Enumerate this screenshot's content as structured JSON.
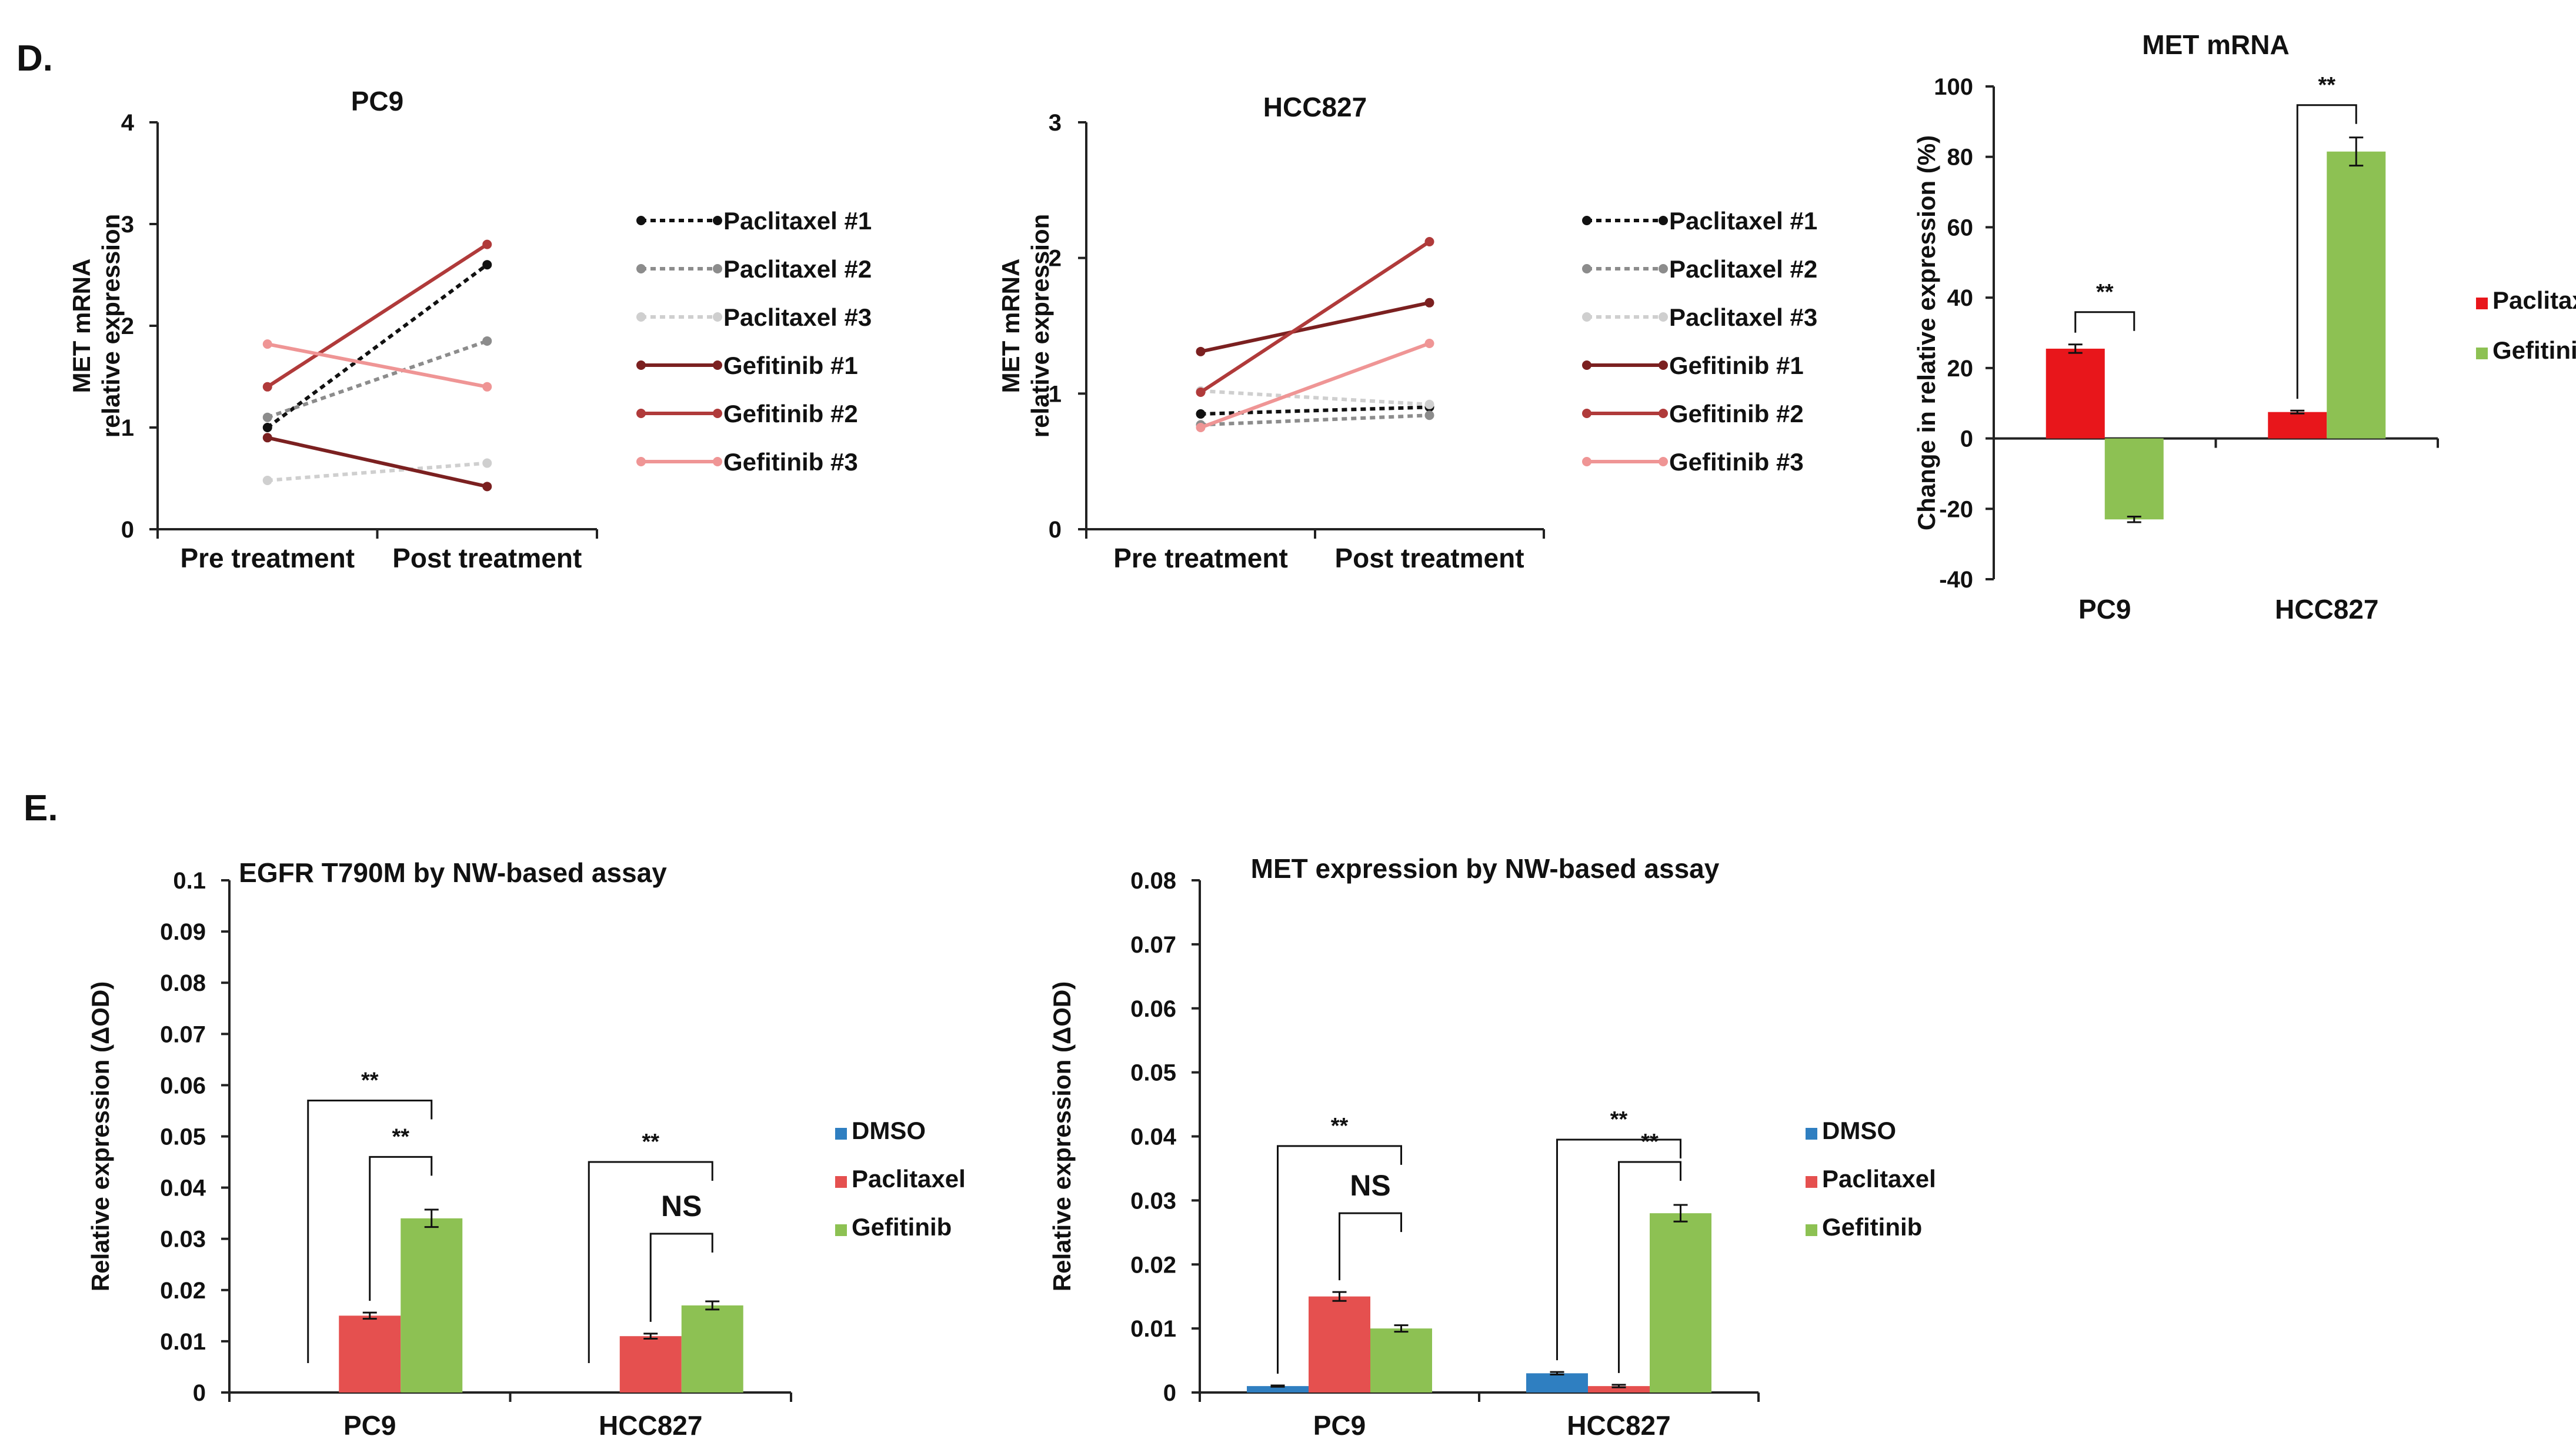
{
  "panels": {
    "D": "D.",
    "E": "E."
  },
  "colors": {
    "paclitaxel_1": "#111111",
    "paclitaxel_2": "#8c8c8c",
    "paclitaxel_3": "#cfcfcf",
    "gefitinib_1": "#7b2020",
    "gefitinib_2": "#b03a3a",
    "gefitinib_3": "#ef9595",
    "dmso": "#2f7fc1",
    "paclitaxel_bar": "#e5504f",
    "paclitaxel_bar_bright": "#e8161b",
    "gefitinib_bar": "#8dc153"
  },
  "chart_data": [
    {
      "id": "pc9-line",
      "type": "line",
      "title": "PC9",
      "ylabel": [
        "MET mRNA",
        "relative expression"
      ],
      "ylim": [
        0,
        4
      ],
      "yticks": [
        "0",
        "1",
        "2",
        "3",
        "4"
      ],
      "categories": [
        "Pre treatment",
        "Post treatment"
      ],
      "series": [
        {
          "name": "Paclitaxel #1",
          "values": [
            1.0,
            2.6
          ],
          "color": "#111111",
          "dash": true
        },
        {
          "name": "Paclitaxel #2",
          "values": [
            1.1,
            1.85
          ],
          "color": "#8c8c8c",
          "dash": true
        },
        {
          "name": "Paclitaxel #3",
          "values": [
            0.48,
            0.65
          ],
          "color": "#cfcfcf",
          "dash": true
        },
        {
          "name": "Gefitinib #1",
          "values": [
            0.9,
            0.42
          ],
          "color": "#7b2020",
          "dash": false
        },
        {
          "name": "Gefitinib #2",
          "values": [
            1.4,
            2.8
          ],
          "color": "#b03a3a",
          "dash": false
        },
        {
          "name": "Gefitinib #3",
          "values": [
            1.82,
            1.4
          ],
          "color": "#ef9595",
          "dash": false
        }
      ]
    },
    {
      "id": "hcc827-line",
      "type": "line",
      "title": "HCC827",
      "ylabel": [
        "MET mRNA",
        "relative expression"
      ],
      "ylim": [
        0,
        3
      ],
      "yticks": [
        "0",
        "1",
        "2",
        "3"
      ],
      "categories": [
        "Pre treatment",
        "Post treatment"
      ],
      "series": [
        {
          "name": "Paclitaxel #1",
          "values": [
            0.85,
            0.9
          ],
          "color": "#111111",
          "dash": true
        },
        {
          "name": "Paclitaxel #2",
          "values": [
            0.77,
            0.84
          ],
          "color": "#8c8c8c",
          "dash": true
        },
        {
          "name": "Paclitaxel #3",
          "values": [
            1.02,
            0.92
          ],
          "color": "#cfcfcf",
          "dash": true
        },
        {
          "name": "Gefitinib #1",
          "values": [
            1.31,
            1.67
          ],
          "color": "#7b2020",
          "dash": false
        },
        {
          "name": "Gefitinib #2",
          "values": [
            1.01,
            2.12
          ],
          "color": "#b03a3a",
          "dash": false
        },
        {
          "name": "Gefitinib #3",
          "values": [
            0.75,
            1.37
          ],
          "color": "#ef9595",
          "dash": false
        }
      ]
    },
    {
      "id": "met-mrna-bar",
      "type": "bar",
      "title": "MET mRNA",
      "ylabel": "Change in relative expression (%)",
      "ylim": [
        -40,
        100
      ],
      "yticks": [
        "-40",
        "-20",
        "0",
        "20",
        "40",
        "60",
        "80",
        "100"
      ],
      "categories": [
        "PC9",
        "HCC827"
      ],
      "series": [
        {
          "name": "Paclitaxel",
          "values": [
            25.5,
            7.5
          ],
          "errors": [
            1.2,
            0.4
          ],
          "color": "#e8161b"
        },
        {
          "name": "Gefitinib",
          "values": [
            -23,
            81.5
          ],
          "errors": [
            0.8,
            4
          ],
          "color": "#8dc153"
        }
      ],
      "legend": "right",
      "significance": [
        {
          "label": "**",
          "category": "PC9",
          "from_series": 0,
          "to_series": 1
        },
        {
          "label": "**",
          "category": "HCC827",
          "from_series": 0,
          "to_series": 1
        }
      ]
    },
    {
      "id": "egfr-t790m-bar",
      "type": "bar",
      "title": "EGFR T790M by NW-based assay",
      "ylabel": "Relative expression (ΔOD)",
      "ylim": [
        0,
        0.1
      ],
      "yticks": [
        "0",
        "0.01",
        "0.02",
        "0.03",
        "0.04",
        "0.05",
        "0.06",
        "0.07",
        "0.08",
        "0.09",
        "0.1"
      ],
      "categories": [
        "PC9",
        "HCC827"
      ],
      "series": [
        {
          "name": "DMSO",
          "values": [
            0,
            0
          ],
          "errors": [
            0,
            0
          ],
          "color": "#2f7fc1"
        },
        {
          "name": "Paclitaxel",
          "values": [
            0.015,
            0.011
          ],
          "errors": [
            0.0006,
            0.0005
          ],
          "color": "#e5504f"
        },
        {
          "name": "Gefitinib",
          "values": [
            0.034,
            0.017
          ],
          "errors": [
            0.0017,
            0.0008
          ],
          "color": "#8dc153"
        }
      ],
      "legend": "right",
      "significance": [
        {
          "label": "**",
          "category": "PC9",
          "from_series": 0,
          "to_series": 2,
          "level": 0.057
        },
        {
          "label": "**",
          "category": "PC9",
          "from_series": 1,
          "to_series": 2,
          "level": 0.046
        },
        {
          "label": "**",
          "category": "HCC827",
          "from_series": 0,
          "to_series": 2,
          "level": 0.045
        },
        {
          "label": "NS",
          "category": "HCC827",
          "from_series": 1,
          "to_series": 2,
          "level": 0.031
        }
      ]
    },
    {
      "id": "met-expression-bar",
      "type": "bar",
      "title": "MET expression by NW-based assay",
      "ylabel": "Relative expression (ΔOD)",
      "ylim": [
        0,
        0.08
      ],
      "yticks": [
        "0",
        "0.01",
        "0.02",
        "0.03",
        "0.04",
        "0.05",
        "0.06",
        "0.07",
        "0.08"
      ],
      "categories": [
        "PC9",
        "HCC827"
      ],
      "series": [
        {
          "name": "DMSO",
          "values": [
            0.001,
            0.003
          ],
          "errors": [
            0.0001,
            0.0002
          ],
          "color": "#2f7fc1"
        },
        {
          "name": "Paclitaxel",
          "values": [
            0.015,
            0.001
          ],
          "errors": [
            0.0007,
            0.0002
          ],
          "color": "#e5504f"
        },
        {
          "name": "Gefitinib",
          "values": [
            0.01,
            0.028
          ],
          "errors": [
            0.0005,
            0.0013
          ],
          "color": "#8dc153"
        }
      ],
      "legend": "right",
      "significance": [
        {
          "label": "**",
          "category": "PC9",
          "from_series": 0,
          "to_series": 2,
          "level": 0.0385
        },
        {
          "label": "NS",
          "category": "PC9",
          "from_series": 1,
          "to_series": 2,
          "level": 0.028
        },
        {
          "label": "**",
          "category": "HCC827",
          "from_series": 0,
          "to_series": 2,
          "level": 0.0395
        },
        {
          "label": "**",
          "category": "HCC827",
          "from_series": 1,
          "to_series": 2,
          "level": 0.036
        }
      ]
    }
  ]
}
